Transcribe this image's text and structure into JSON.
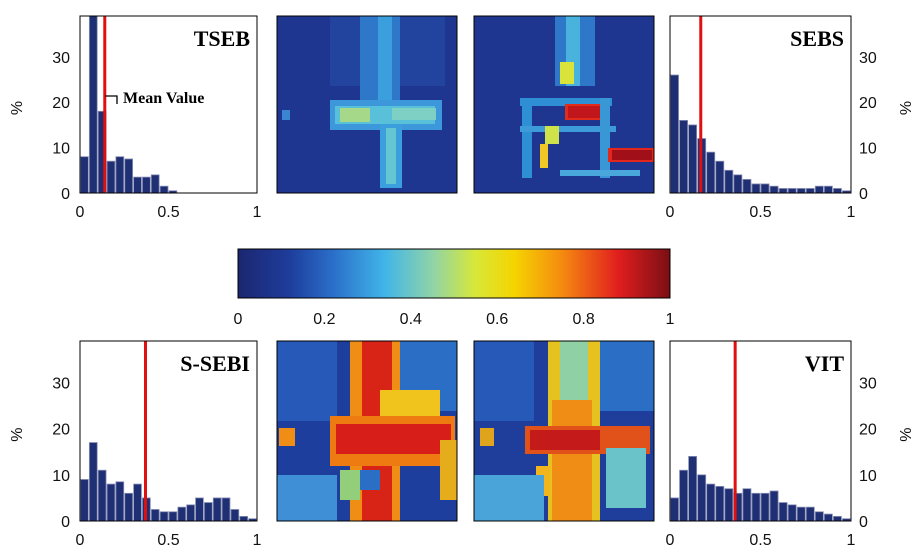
{
  "colors": {
    "bar_fill": "#1f2f73",
    "bar_edge": "#8a8fb5",
    "mean_line": "#e01010",
    "frame": "#000000"
  },
  "colorbar": {
    "colormap": "jet",
    "range": [
      0,
      1
    ],
    "ticks": [
      "0",
      "0.2",
      "0.4",
      "0.6",
      "0.8",
      "1"
    ]
  },
  "annotation": {
    "text": "Mean Value"
  },
  "chart_data": [
    {
      "type": "bar",
      "title": "TSEB",
      "ylabel": "%",
      "y_axis_side": "left",
      "xlim": [
        0,
        1
      ],
      "ylim": [
        0,
        39
      ],
      "xticks": [
        "0",
        "0.5",
        "1"
      ],
      "yticks": [
        "0",
        "10",
        "20",
        "30"
      ],
      "bin_width": 0.05,
      "bin_centers": [
        0.025,
        0.075,
        0.125,
        0.175,
        0.225,
        0.275,
        0.325,
        0.375,
        0.425,
        0.475,
        0.525,
        0.575
      ],
      "values": [
        8,
        39,
        18,
        7,
        8,
        7.5,
        3.5,
        3.5,
        4,
        1.5,
        0.5,
        0
      ],
      "mean": 0.14
    },
    {
      "type": "bar",
      "title": "SEBS",
      "ylabel": "%",
      "y_axis_side": "right",
      "xlim": [
        0,
        1
      ],
      "ylim": [
        0,
        39
      ],
      "xticks": [
        "0",
        "0.5",
        "1"
      ],
      "yticks": [
        "0",
        "10",
        "20",
        "30"
      ],
      "bin_width": 0.05,
      "bin_centers": [
        0.025,
        0.075,
        0.125,
        0.175,
        0.225,
        0.275,
        0.325,
        0.375,
        0.425,
        0.475,
        0.525,
        0.575,
        0.625,
        0.675,
        0.725,
        0.775,
        0.825,
        0.875,
        0.925,
        0.975
      ],
      "values": [
        26,
        16,
        15,
        12,
        9,
        7,
        5,
        4,
        3,
        2,
        2,
        1.5,
        1,
        1,
        1,
        1,
        1.5,
        1.5,
        1,
        0.5
      ],
      "mean": 0.17
    },
    {
      "type": "bar",
      "title": "S-SEBI",
      "ylabel": "%",
      "y_axis_side": "left",
      "xlim": [
        0,
        1
      ],
      "ylim": [
        0,
        39
      ],
      "xticks": [
        "0",
        "0.5",
        "1"
      ],
      "yticks": [
        "0",
        "10",
        "20",
        "30"
      ],
      "bin_width": 0.05,
      "bin_centers": [
        0.025,
        0.075,
        0.125,
        0.175,
        0.225,
        0.275,
        0.325,
        0.375,
        0.425,
        0.475,
        0.525,
        0.575,
        0.625,
        0.675,
        0.725,
        0.775,
        0.825,
        0.875,
        0.925,
        0.975
      ],
      "values": [
        9,
        17,
        11,
        8,
        8.5,
        6,
        8,
        5,
        2.5,
        2,
        2,
        3,
        3.5,
        5,
        4,
        5,
        5,
        2.5,
        1,
        0.5
      ],
      "mean": 0.37
    },
    {
      "type": "bar",
      "title": "VIT",
      "ylabel": "%",
      "y_axis_side": "right",
      "xlim": [
        0,
        1
      ],
      "ylim": [
        0,
        39
      ],
      "xticks": [
        "0",
        "0.5",
        "1"
      ],
      "yticks": [
        "0",
        "10",
        "20",
        "30"
      ],
      "bin_width": 0.05,
      "bin_centers": [
        0.025,
        0.075,
        0.125,
        0.175,
        0.225,
        0.275,
        0.325,
        0.375,
        0.425,
        0.475,
        0.525,
        0.575,
        0.625,
        0.675,
        0.725,
        0.775,
        0.825,
        0.875,
        0.925,
        0.975
      ],
      "values": [
        5,
        11,
        14,
        10,
        8,
        7.5,
        7,
        6,
        7,
        6,
        6,
        6.5,
        4,
        3.5,
        3,
        3,
        2,
        1.5,
        1,
        0.5
      ],
      "mean": 0.36
    }
  ]
}
